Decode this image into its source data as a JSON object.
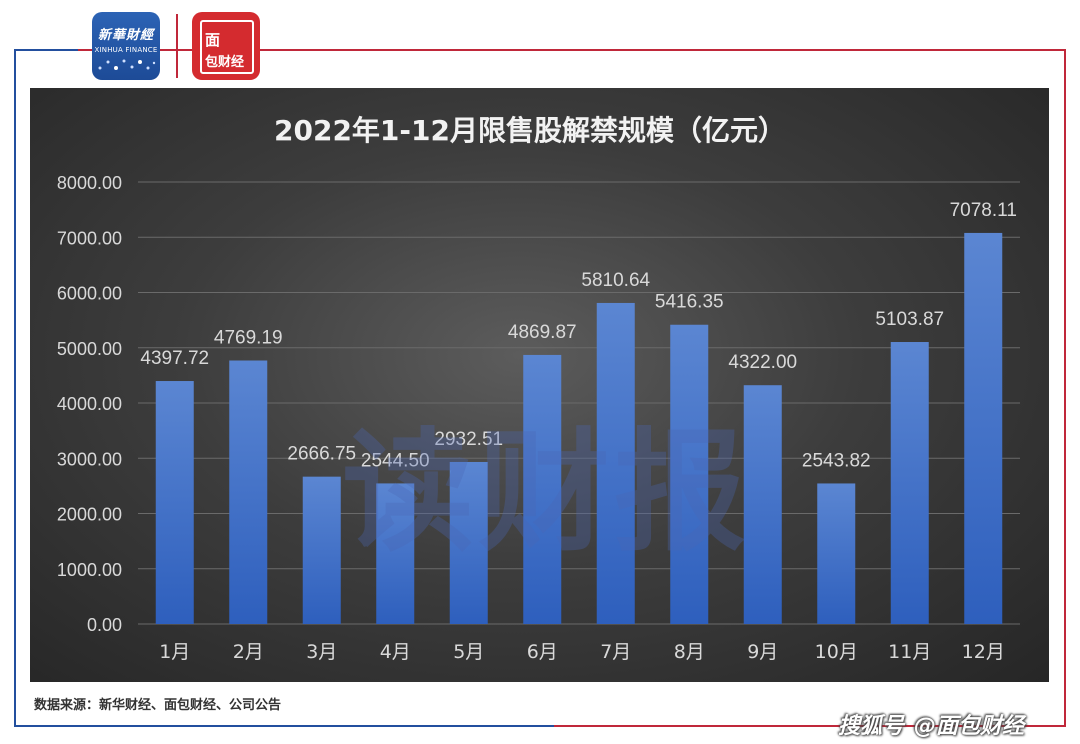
{
  "header": {
    "logo_left_line1": "新華財經",
    "logo_left_line2": "XINHUA FINANCE",
    "logo_right_line1": "面",
    "logo_right_line2": "包财经"
  },
  "watermark": "读财报",
  "source_note": "数据来源：新华财经、面包财经、公司公告",
  "footer": {
    "platform": "搜狐号",
    "account": "@面包财经"
  },
  "colors": {
    "bar_top": "#5b86d2",
    "bar_bottom": "#2e5fbd",
    "accent_red": "#c0283a",
    "accent_blue": "#234f9e"
  },
  "chart_data": {
    "type": "bar",
    "title": "2022年1-12月限售股解禁规模（亿元）",
    "xlabel": "",
    "ylabel": "",
    "ylim": [
      0,
      8000
    ],
    "yticks": [
      "0.00",
      "1000.00",
      "2000.00",
      "3000.00",
      "4000.00",
      "5000.00",
      "6000.00",
      "7000.00",
      "8000.00"
    ],
    "grid": true,
    "legend": "none",
    "categories": [
      "1月",
      "2月",
      "3月",
      "4月",
      "5月",
      "6月",
      "7月",
      "8月",
      "9月",
      "10月",
      "11月",
      "12月"
    ],
    "values": [
      4397.72,
      4769.19,
      2666.75,
      2544.5,
      2932.51,
      4869.87,
      5810.64,
      5416.35,
      4322.0,
      2543.82,
      5103.87,
      7078.11
    ],
    "value_labels": [
      "4397.72",
      "4769.19",
      "2666.75",
      "2544.50",
      "2932.51",
      "4869.87",
      "5810.64",
      "5416.35",
      "4322.00",
      "2543.82",
      "5103.87",
      "7078.11"
    ]
  }
}
